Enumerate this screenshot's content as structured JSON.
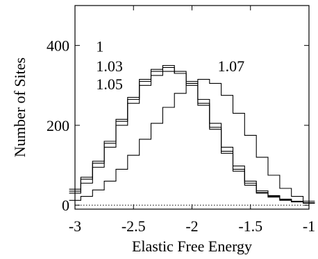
{
  "chart_data": {
    "type": "line",
    "step": true,
    "xlabel": "Elastic Free Energy",
    "ylabel": "Number of Sites",
    "xlim": [
      -3,
      -1
    ],
    "ylim": [
      -10,
      500
    ],
    "xticks": [
      -3,
      -2.5,
      -2,
      -1.5,
      -1
    ],
    "xtick_labels": [
      "-3",
      "-2.5",
      "-2",
      "-1.5",
      "-1"
    ],
    "yticks": [
      0,
      200,
      400
    ],
    "ytick_labels": [
      "0",
      "200",
      "400"
    ],
    "zero_line": "dotted",
    "grid": false,
    "legend": "none",
    "line_color": "#000000",
    "annotations": [
      {
        "text": "1",
        "x": -2.82,
        "y": 385
      },
      {
        "text": "1.03",
        "x": -2.82,
        "y": 335
      },
      {
        "text": "1.05",
        "x": -2.82,
        "y": 290
      },
      {
        "text": "1.07",
        "x": -1.78,
        "y": 335
      }
    ],
    "series": [
      {
        "x": [
          -3.0,
          -2.9,
          -2.8,
          -2.7,
          -2.6,
          -2.5,
          -2.4,
          -2.3,
          -2.2,
          -2.1,
          -2.0,
          -1.9,
          -1.8,
          -1.7,
          -1.6,
          -1.5,
          -1.4,
          -1.3,
          -1.2,
          -1.1,
          -1.0
        ],
        "values": [
          40,
          70,
          110,
          160,
          215,
          270,
          315,
          340,
          350,
          330,
          300,
          250,
          190,
          130,
          85,
          50,
          30,
          20,
          12,
          8,
          5
        ]
      },
      {
        "x": [
          -3.0,
          -2.9,
          -2.8,
          -2.7,
          -2.6,
          -2.5,
          -2.4,
          -2.3,
          -2.2,
          -2.1,
          -2.0,
          -1.9,
          -1.8,
          -1.7,
          -1.6,
          -1.5,
          -1.4,
          -1.3,
          -1.2,
          -1.1,
          -1.0
        ],
        "values": [
          35,
          65,
          105,
          155,
          210,
          265,
          310,
          335,
          345,
          335,
          305,
          255,
          195,
          135,
          90,
          55,
          32,
          22,
          14,
          9,
          6
        ]
      },
      {
        "x": [
          -3.0,
          -2.9,
          -2.8,
          -2.7,
          -2.6,
          -2.5,
          -2.4,
          -2.3,
          -2.2,
          -2.1,
          -2.0,
          -1.9,
          -1.8,
          -1.7,
          -1.6,
          -1.5,
          -1.4,
          -1.3,
          -1.2,
          -1.1,
          -1.0
        ],
        "values": [
          30,
          55,
          95,
          145,
          200,
          255,
          300,
          325,
          335,
          330,
          310,
          265,
          205,
          145,
          98,
          60,
          36,
          24,
          15,
          10,
          6
        ]
      },
      {
        "x": [
          -3.0,
          -2.9,
          -2.8,
          -2.7,
          -2.6,
          -2.5,
          -2.4,
          -2.3,
          -2.2,
          -2.1,
          -2.0,
          -1.9,
          -1.8,
          -1.7,
          -1.6,
          -1.5,
          -1.4,
          -1.3,
          -1.2,
          -1.1,
          -1.0
        ],
        "values": [
          12,
          22,
          38,
          60,
          90,
          125,
          165,
          205,
          245,
          280,
          305,
          315,
          305,
          275,
          230,
          175,
          120,
          75,
          42,
          22,
          10
        ]
      }
    ]
  }
}
